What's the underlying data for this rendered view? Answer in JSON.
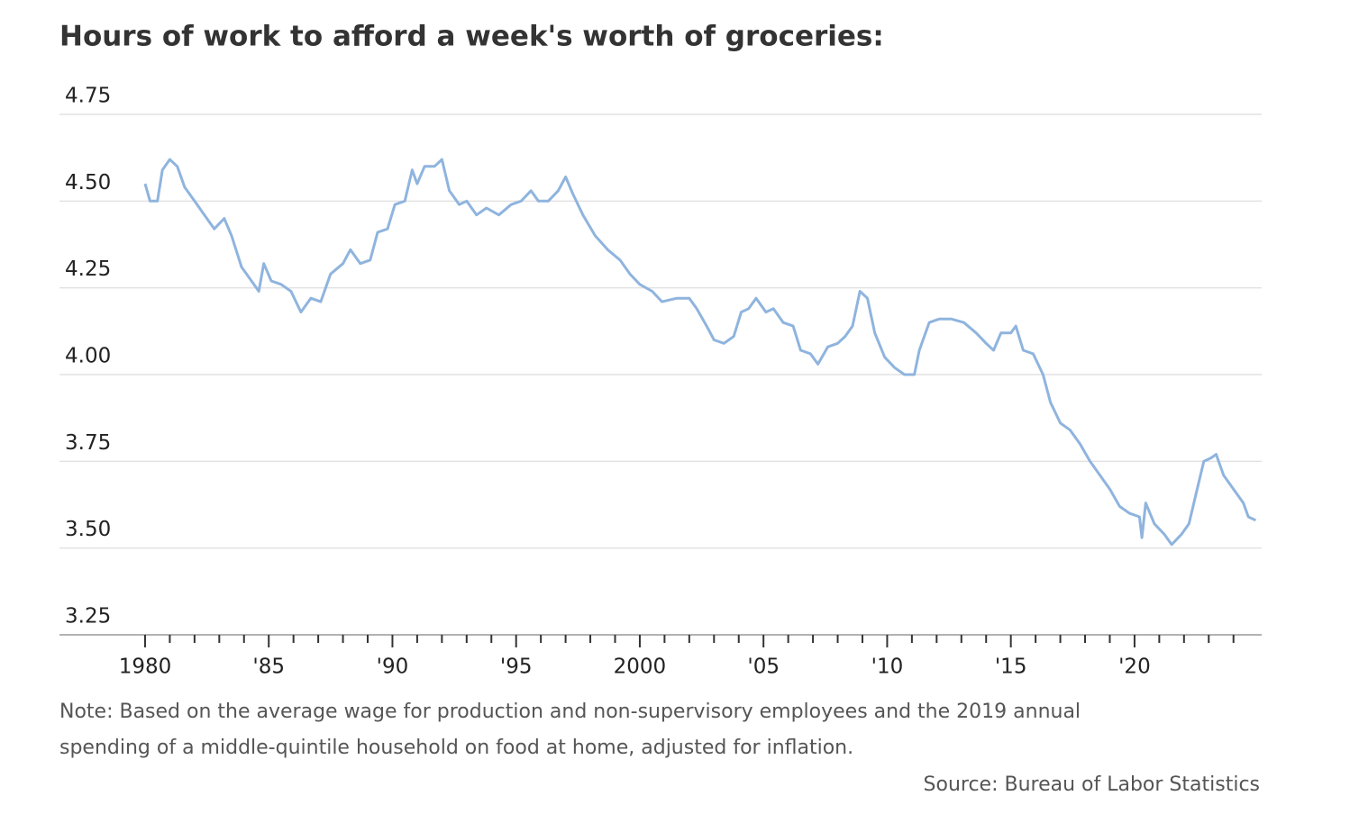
{
  "chart_data": {
    "type": "line",
    "title": "Hours of work to afford a week's worth of groceries:",
    "note": [
      "Note: Based on the average wage for production and non-supervisory employees and the 2019 annual",
      "spending of a middle-quintile household on food at home, adjusted for inflation."
    ],
    "source": "Source: Bureau of Labor Statistics",
    "x": [
      1980.0,
      1980.2,
      1980.5,
      1980.7,
      1981.0,
      1981.3,
      1981.6,
      1982.0,
      1982.4,
      1982.8,
      1983.2,
      1983.5,
      1983.9,
      1984.2,
      1984.6,
      1984.8,
      1985.1,
      1985.5,
      1985.9,
      1986.3,
      1986.7,
      1987.1,
      1987.5,
      1988.0,
      1988.3,
      1988.7,
      1989.1,
      1989.4,
      1989.8,
      1990.1,
      1990.5,
      1990.8,
      1991.0,
      1991.3,
      1991.7,
      1992.0,
      1992.3,
      1992.7,
      1993.0,
      1993.4,
      1993.8,
      1994.3,
      1994.8,
      1995.2,
      1995.6,
      1995.9,
      1996.3,
      1996.7,
      1997.0,
      1997.3,
      1997.7,
      1998.2,
      1998.7,
      1999.2,
      1999.6,
      2000.0,
      2000.5,
      2000.9,
      2001.5,
      2002.0,
      2002.3,
      2002.7,
      2003.0,
      2003.4,
      2003.8,
      2004.1,
      2004.4,
      2004.7,
      2005.1,
      2005.4,
      2005.8,
      2006.2,
      2006.5,
      2006.9,
      2007.2,
      2007.6,
      2008.0,
      2008.3,
      2008.6,
      2008.9,
      2009.2,
      2009.5,
      2009.9,
      2010.3,
      2010.7,
      2011.1,
      2011.3,
      2011.7,
      2012.1,
      2012.6,
      2013.1,
      2013.6,
      2014.0,
      2014.3,
      2014.6,
      2015.0,
      2015.2,
      2015.5,
      2015.9,
      2016.3,
      2016.6,
      2017.0,
      2017.4,
      2017.8,
      2018.2,
      2018.6,
      2019.0,
      2019.4,
      2019.8,
      2020.2,
      2020.3,
      2020.45,
      2020.8,
      2021.2,
      2021.5,
      2021.9,
      2022.2,
      2022.5,
      2022.8,
      2023.1,
      2023.3,
      2023.6,
      2024.0,
      2024.4,
      2024.6,
      2024.9
    ],
    "series": [
      {
        "name": "Hours of work",
        "color": "#8fb4de",
        "values": [
          4.55,
          4.5,
          4.5,
          4.59,
          4.62,
          4.6,
          4.54,
          4.5,
          4.46,
          4.42,
          4.45,
          4.4,
          4.31,
          4.28,
          4.24,
          4.32,
          4.27,
          4.26,
          4.24,
          4.18,
          4.22,
          4.21,
          4.29,
          4.32,
          4.36,
          4.32,
          4.33,
          4.41,
          4.42,
          4.49,
          4.5,
          4.59,
          4.55,
          4.6,
          4.6,
          4.62,
          4.53,
          4.49,
          4.5,
          4.46,
          4.48,
          4.46,
          4.49,
          4.5,
          4.53,
          4.5,
          4.5,
          4.53,
          4.57,
          4.52,
          4.46,
          4.4,
          4.36,
          4.33,
          4.29,
          4.26,
          4.24,
          4.21,
          4.22,
          4.22,
          4.19,
          4.14,
          4.1,
          4.09,
          4.11,
          4.18,
          4.19,
          4.22,
          4.18,
          4.19,
          4.15,
          4.14,
          4.07,
          4.06,
          4.03,
          4.08,
          4.09,
          4.11,
          4.14,
          4.24,
          4.22,
          4.12,
          4.05,
          4.02,
          4.0,
          4.0,
          4.07,
          4.15,
          4.16,
          4.16,
          4.15,
          4.12,
          4.09,
          4.07,
          4.12,
          4.12,
          4.14,
          4.07,
          4.06,
          4.0,
          3.92,
          3.86,
          3.84,
          3.8,
          3.75,
          3.71,
          3.67,
          3.62,
          3.6,
          3.59,
          3.53,
          3.63,
          3.57,
          3.54,
          3.51,
          3.54,
          3.57,
          3.66,
          3.75,
          3.76,
          3.77,
          3.71,
          3.67,
          3.63,
          3.59,
          3.58
        ]
      }
    ],
    "xlim": [
      1976.54,
      2025.14
    ],
    "ylim": [
      3.25,
      4.75
    ],
    "xticks": [
      1980,
      {
        "value": 1985,
        "label": "'85"
      },
      {
        "value": 1990,
        "label": "'90"
      },
      {
        "value": 1995,
        "label": "'95"
      },
      2000,
      {
        "value": 2005,
        "label": "'05"
      },
      {
        "value": 2010,
        "label": "'10"
      },
      {
        "value": 2015,
        "label": "'15"
      },
      {
        "value": 2020,
        "label": "'20"
      }
    ],
    "xminorticks": [
      1981,
      1982,
      1983,
      1984,
      1986,
      1987,
      1988,
      1989,
      1991,
      1992,
      1993,
      1994,
      1996,
      1997,
      1998,
      1999,
      2001,
      2002,
      2003,
      2004,
      2006,
      2007,
      2008,
      2009,
      2011,
      2012,
      2013,
      2014,
      2016,
      2017,
      2018,
      2019,
      2021,
      2022,
      2023,
      2024
    ],
    "yticks": [
      {
        "value": 3.25,
        "label": "3.25"
      },
      {
        "value": 3.5,
        "label": "3.50"
      },
      3.75,
      {
        "value": 4.0,
        "label": "4.00"
      },
      4.25,
      {
        "value": 4.5,
        "label": "4.50"
      },
      4.75
    ],
    "grid": true
  }
}
